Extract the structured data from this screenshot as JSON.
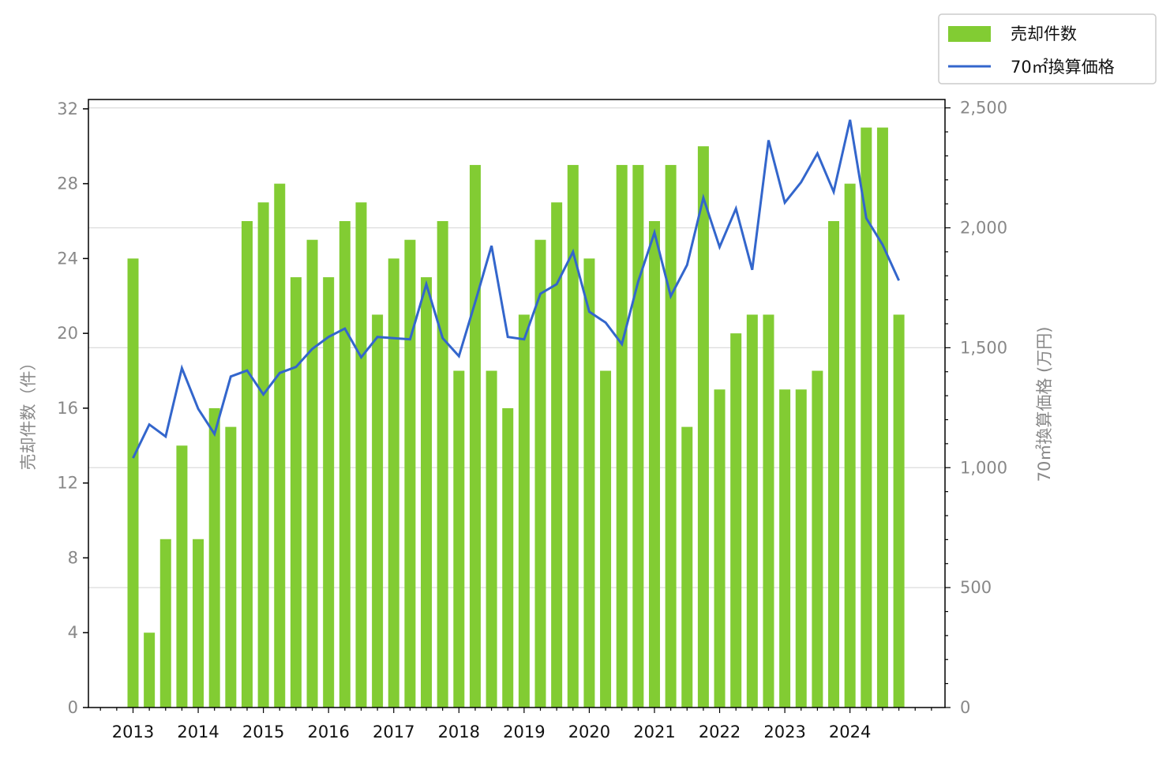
{
  "chart_data": {
    "type": "bar",
    "x": [
      "2013Q1",
      "2013Q2",
      "2013Q3",
      "2013Q4",
      "2014Q1",
      "2014Q2",
      "2014Q3",
      "2014Q4",
      "2015Q1",
      "2015Q2",
      "2015Q3",
      "2015Q4",
      "2016Q1",
      "2016Q2",
      "2016Q3",
      "2016Q4",
      "2017Q1",
      "2017Q2",
      "2017Q3",
      "2017Q4",
      "2018Q1",
      "2018Q2",
      "2018Q3",
      "2018Q4",
      "2019Q1",
      "2019Q2",
      "2019Q3",
      "2019Q4",
      "2020Q1",
      "2020Q2",
      "2020Q3",
      "2020Q4",
      "2021Q1",
      "2021Q2",
      "2021Q3",
      "2021Q4",
      "2022Q1",
      "2022Q2",
      "2022Q3",
      "2022Q4",
      "2023Q1",
      "2023Q2",
      "2023Q3",
      "2023Q4",
      "2024Q1",
      "2024Q2",
      "2024Q3",
      "2024Q4"
    ],
    "x_tick_labels": [
      "2013",
      "2014",
      "2015",
      "2016",
      "2017",
      "2018",
      "2019",
      "2020",
      "2021",
      "2022",
      "2023",
      "2024"
    ],
    "series": [
      {
        "name": "売却件数",
        "type": "bar",
        "axis": "left",
        "color": "#82cc33",
        "values": [
          24,
          4,
          9,
          14,
          9,
          16,
          15,
          26,
          27,
          28,
          23,
          25,
          23,
          26,
          27,
          21,
          24,
          25,
          23,
          26,
          18,
          29,
          18,
          16,
          21,
          25,
          27,
          29,
          24,
          18,
          29,
          29,
          26,
          29,
          15,
          30,
          17,
          20,
          21,
          21,
          17,
          17,
          18,
          26,
          28,
          31,
          31,
          21
        ]
      },
      {
        "name": "70㎡換算価格",
        "type": "line",
        "axis": "right",
        "color": "#3366cc",
        "values": [
          1040,
          1180,
          1130,
          1415,
          1245,
          1140,
          1380,
          1405,
          1305,
          1395,
          1420,
          1495,
          1545,
          1580,
          1460,
          1545,
          1540,
          1535,
          1765,
          1540,
          1465,
          1690,
          1925,
          1545,
          1535,
          1725,
          1765,
          1900,
          1650,
          1605,
          1515,
          1775,
          1980,
          1715,
          1845,
          2125,
          1920,
          2080,
          1825,
          2365,
          2105,
          2190,
          2310,
          2150,
          2450,
          2040,
          1930,
          1780
        ]
      }
    ],
    "ylabel": "売却件数（件）",
    "ylim": [
      0,
      32.5
    ],
    "yticks": [
      "0",
      "4",
      "8",
      "12",
      "16",
      "20",
      "24",
      "28",
      "32"
    ],
    "y2label": "70㎡換算価格 (万円)",
    "y2lim": [
      0,
      2535
    ],
    "y2ticks": [
      "0",
      "500",
      "1,000",
      "1,500",
      "2,000",
      "2,500"
    ],
    "grid": "horizontal (right axis)",
    "legend_position": "top-right"
  }
}
